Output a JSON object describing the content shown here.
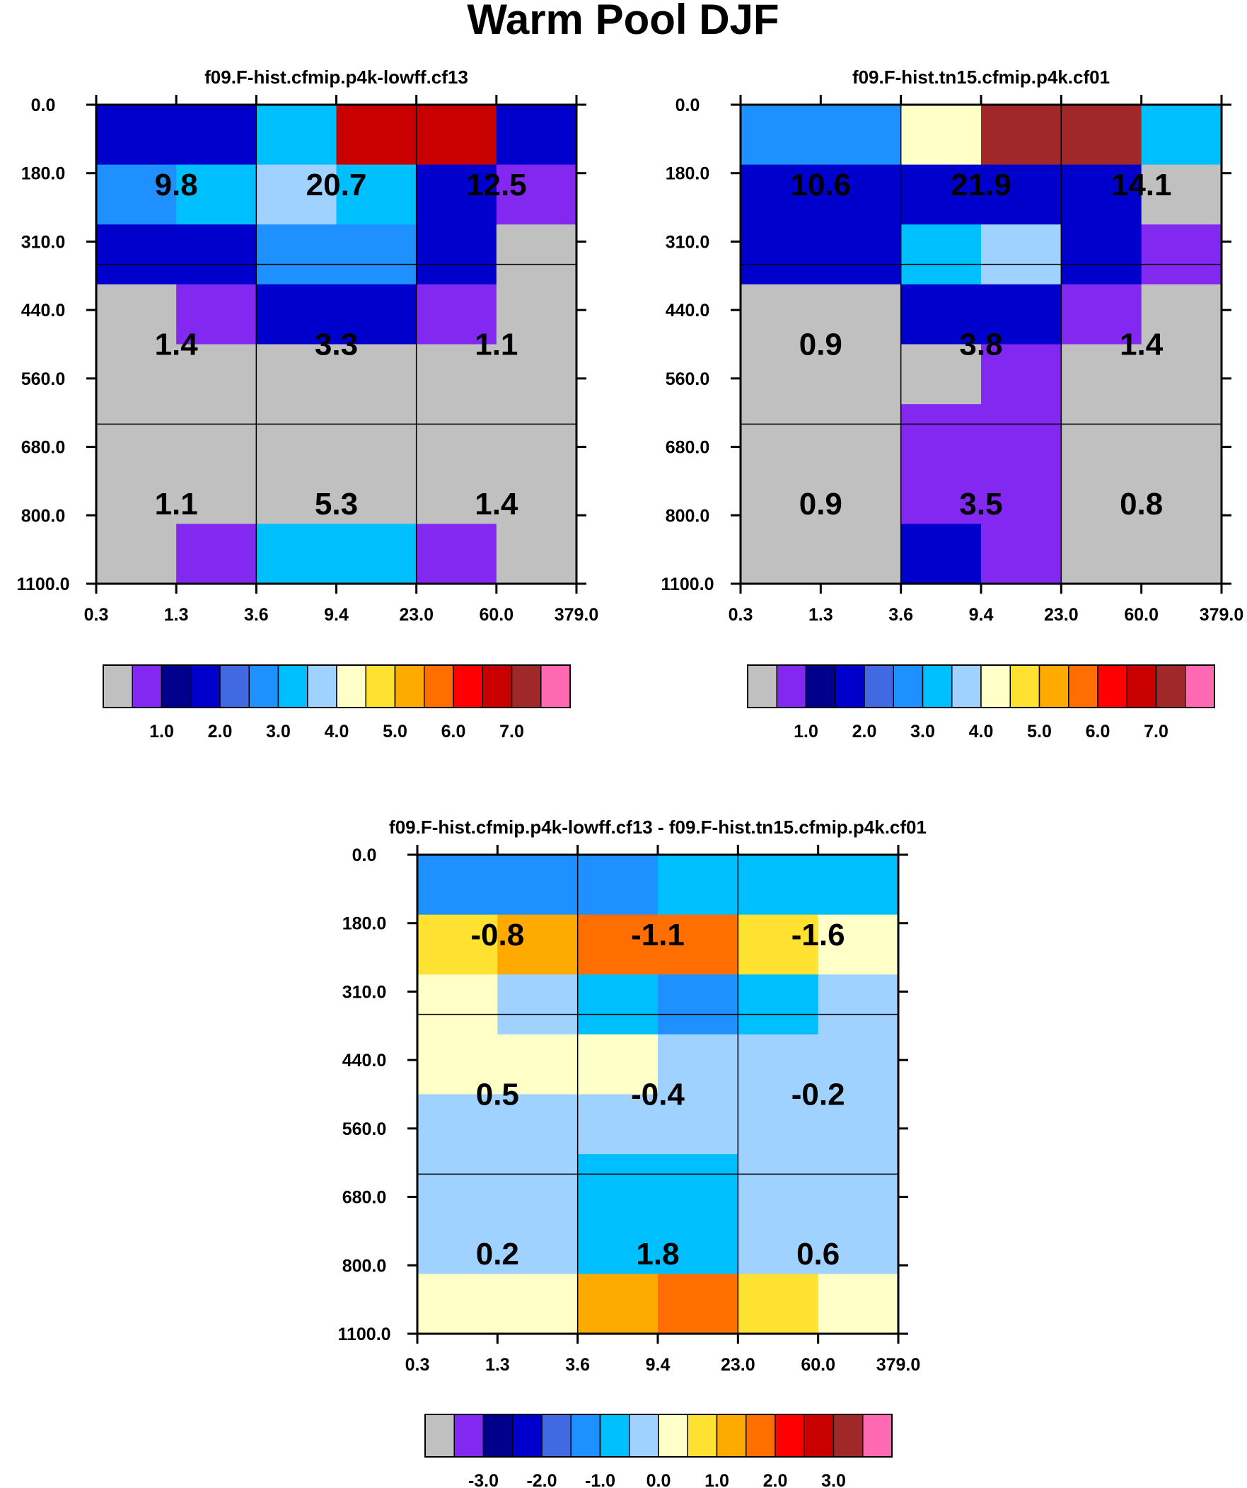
{
  "title": "Warm Pool DJF",
  "chart_data": [
    {
      "type": "heatmap",
      "title": "f09.F-hist.cfmip.p4k-lowff.cf13",
      "x_ticks": [
        "0.3",
        "1.3",
        "3.6",
        "9.4",
        "23.0",
        "60.0",
        "379.0"
      ],
      "y_ticks": [
        "0.0",
        "180.0",
        "310.0",
        "440.0",
        "560.0",
        "680.0",
        "800.0",
        "1100.0"
      ],
      "cells": [
        [
          1.8,
          1.8,
          3.2,
          6.6,
          6.6,
          1.9
        ],
        [
          2.5,
          3.2,
          3.8,
          3.4,
          1.9,
          0.8
        ],
        [
          1.7,
          1.7,
          2.7,
          2.7,
          1.6,
          0.0
        ],
        [
          0.0,
          0.8,
          1.8,
          1.8,
          0.8,
          0.0
        ],
        [
          0.0,
          0.0,
          0.0,
          0.0,
          0.0,
          0.0
        ],
        [
          0.0,
          0.0,
          0.0,
          0.0,
          0.0,
          0.0
        ],
        [
          0.0,
          0.0,
          0.0,
          0.0,
          0.0,
          0.0
        ],
        [
          0.0,
          0.8,
          3.2,
          3.2,
          0.8,
          0.0
        ]
      ],
      "group_labels": [
        [
          "9.8",
          "20.7",
          "12.5"
        ],
        [
          "1.4",
          "3.3",
          "1.1"
        ],
        [
          "1.1",
          "5.3",
          "1.4"
        ]
      ],
      "colorbar_labels": [
        "1.0",
        "2.0",
        "3.0",
        "4.0",
        "5.0",
        "6.0",
        "7.0"
      ]
    },
    {
      "type": "heatmap",
      "title": "f09.F-hist.tn15.cfmip.p4k.cf01",
      "x_ticks": [
        "0.3",
        "1.3",
        "3.6",
        "9.4",
        "23.0",
        "60.0",
        "379.0"
      ],
      "y_ticks": [
        "0.0",
        "180.0",
        "310.0",
        "440.0",
        "560.0",
        "680.0",
        "800.0",
        "1100.0"
      ],
      "cells": [
        [
          2.7,
          2.7,
          4.2,
          7.2,
          7.2,
          3.2
        ],
        [
          1.9,
          1.9,
          1.9,
          1.9,
          1.6,
          0.0
        ],
        [
          1.7,
          1.7,
          3.2,
          3.7,
          1.9,
          0.8
        ],
        [
          0.0,
          0.0,
          1.7,
          1.9,
          0.8,
          0.0
        ],
        [
          0.0,
          0.0,
          0.0,
          0.8,
          0.0,
          0.0
        ],
        [
          0.0,
          0.0,
          0.8,
          0.8,
          0.0,
          0.0
        ],
        [
          0.0,
          0.0,
          0.8,
          0.8,
          0.0,
          0.0
        ],
        [
          0.0,
          0.0,
          1.7,
          0.8,
          0.0,
          0.0
        ]
      ],
      "group_labels": [
        [
          "10.6",
          "21.9",
          "14.1"
        ],
        [
          "0.9",
          "3.8",
          "1.4"
        ],
        [
          "0.9",
          "3.5",
          "0.8"
        ]
      ],
      "colorbar_labels": [
        "1.0",
        "2.0",
        "3.0",
        "4.0",
        "5.0",
        "6.0",
        "7.0"
      ]
    },
    {
      "type": "heatmap",
      "title": "f09.F-hist.cfmip.p4k-lowff.cf13 - f09.F-hist.tn15.cfmip.p4k.cf01",
      "x_ticks": [
        "0.3",
        "1.3",
        "3.6",
        "9.4",
        "23.0",
        "60.0",
        "379.0"
      ],
      "y_ticks": [
        "0.0",
        "180.0",
        "310.0",
        "440.0",
        "560.0",
        "680.0",
        "800.0",
        "1100.0"
      ],
      "cells": [
        [
          -1.2,
          -1.2,
          -1.2,
          -0.7,
          -0.7,
          -0.7
        ],
        [
          0.8,
          1.2,
          1.7,
          1.7,
          0.8,
          0.3
        ],
        [
          0.3,
          -0.2,
          -0.7,
          -1.2,
          -0.7,
          -0.2
        ],
        [
          0.3,
          0.3,
          0.3,
          -0.2,
          -0.2,
          -0.2
        ],
        [
          -0.2,
          -0.2,
          -0.2,
          -0.2,
          -0.2,
          -0.2
        ],
        [
          -0.2,
          -0.2,
          -0.7,
          -0.7,
          -0.2,
          -0.2
        ],
        [
          -0.2,
          -0.2,
          -0.7,
          -0.7,
          -0.2,
          -0.2
        ],
        [
          0.3,
          0.3,
          1.2,
          1.7,
          0.8,
          0.3
        ]
      ],
      "group_labels": [
        [
          "-0.8",
          "-1.1",
          "-1.6"
        ],
        [
          "0.5",
          "-0.4",
          "-0.2"
        ],
        [
          "0.2",
          "1.8",
          "0.6"
        ]
      ],
      "colorbar_labels": [
        "-3.0",
        "-2.0",
        "-1.0",
        "0.0",
        "1.0",
        "2.0",
        "3.0"
      ]
    }
  ],
  "palette": [
    "#C0C0C0",
    "#8228F0",
    "#00008C",
    "#0000CD",
    "#4169E1",
    "#1E90FF",
    "#00BFFF",
    "#A0D2FF",
    "#FFFFC8",
    "#FFE132",
    "#FFAA00",
    "#FF6E00",
    "#FF0000",
    "#C80000",
    "#A02828",
    "#FF69B4"
  ],
  "levels": {
    "absolute": [
      0.5,
      1.0,
      1.5,
      2.0,
      2.5,
      3.0,
      3.5,
      4.0,
      4.5,
      5.0,
      5.5,
      6.0,
      6.5,
      7.0,
      7.5
    ],
    "difference": [
      -3.5,
      -3.0,
      -2.5,
      -2.0,
      -1.5,
      -1.0,
      -0.5,
      0.0,
      0.5,
      1.0,
      1.5,
      2.0,
      2.5,
      3.0,
      3.5
    ]
  }
}
